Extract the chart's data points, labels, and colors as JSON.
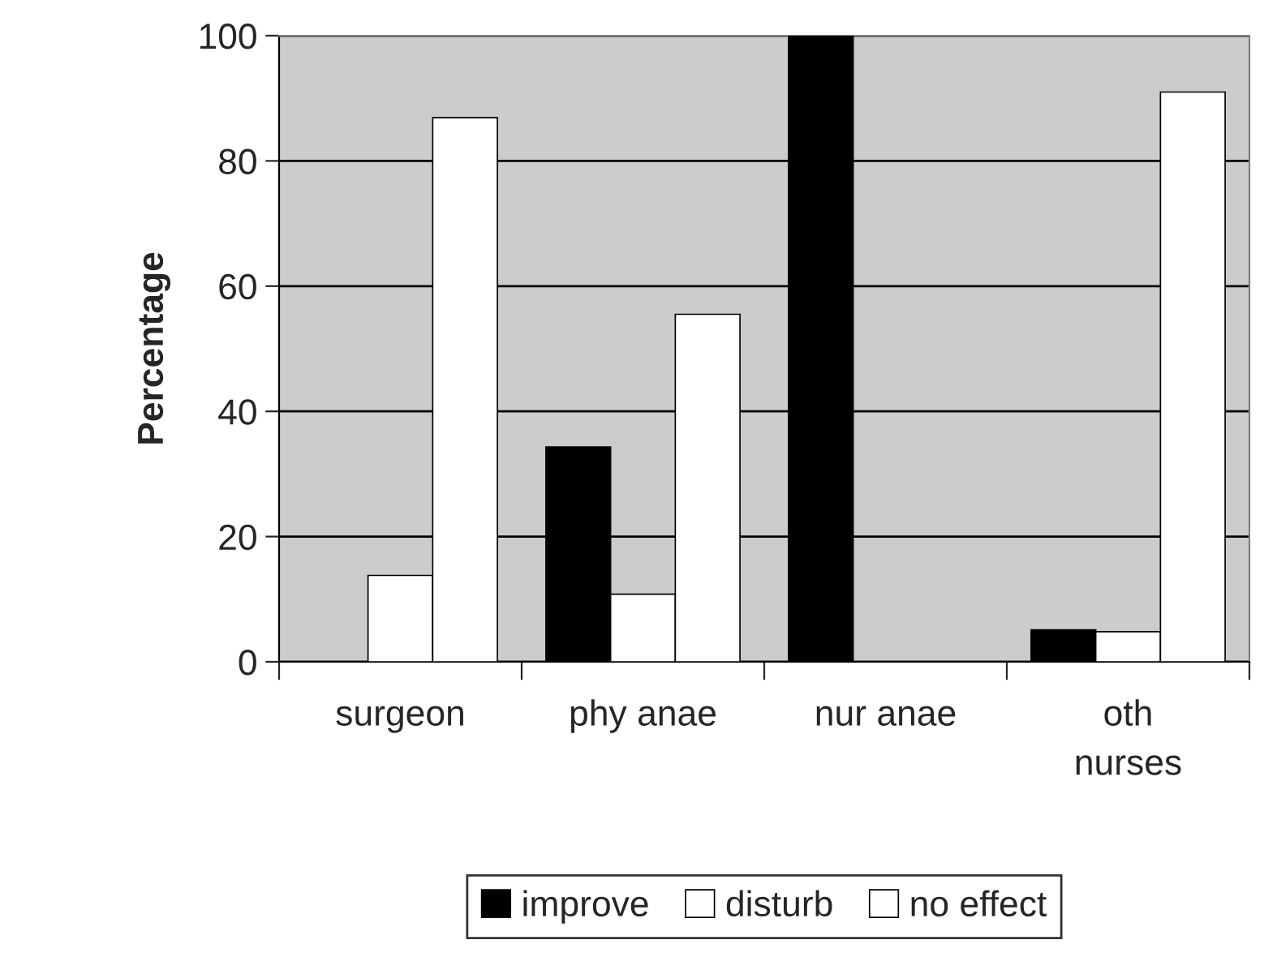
{
  "chart_data": {
    "type": "bar",
    "ylabel": "Percentage",
    "categories": [
      "surgeon",
      "phy anae",
      "nur anae",
      "oth\nnurses"
    ],
    "series": [
      {
        "name": "improve",
        "color": "#000000",
        "values": [
          0,
          34.3,
          100,
          5.1
        ]
      },
      {
        "name": "disturb",
        "color": "#ffffff",
        "values": [
          13.8,
          10.8,
          0,
          4.8
        ]
      },
      {
        "name": "no effect",
        "color": "#ffffff",
        "values": [
          86.9,
          55.5,
          0,
          91
        ]
      }
    ],
    "ylim": [
      0,
      100
    ],
    "yticks": [
      0,
      20,
      40,
      60,
      80,
      100
    ],
    "grid": "y",
    "legend": "bottom"
  }
}
